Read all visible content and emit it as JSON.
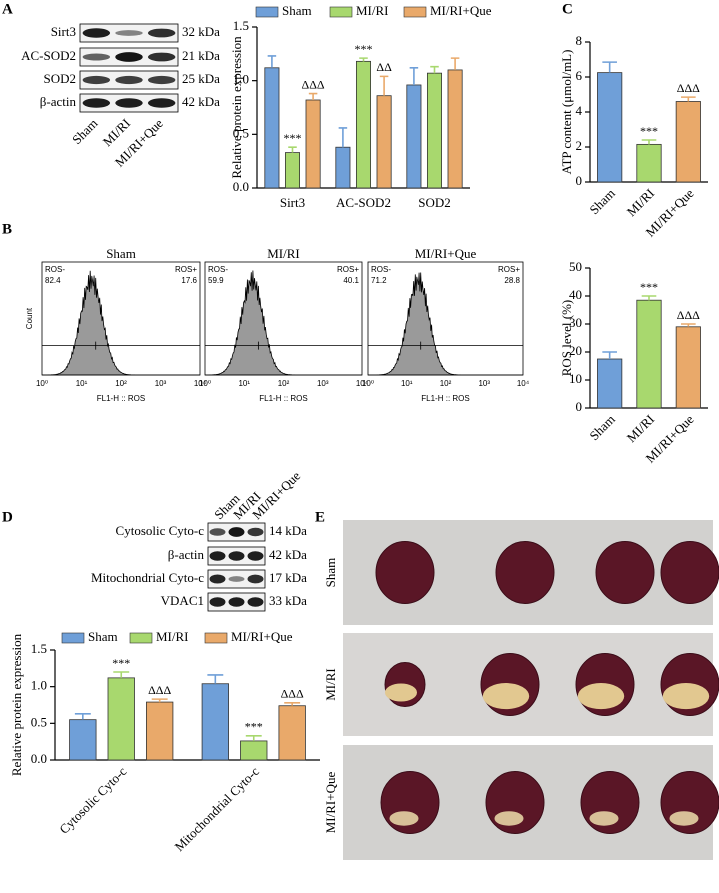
{
  "panel_labels": [
    "A",
    "B",
    "C",
    "D",
    "E"
  ],
  "blot_A": {
    "lanes": [
      "Sham",
      "MI/RI",
      "MI/RI+Que"
    ],
    "rows": [
      {
        "protein": "Sirt3",
        "size": "32 kDa"
      },
      {
        "protein": "AC-SOD2",
        "size": "21 kDa"
      },
      {
        "protein": "SOD2",
        "size": "25 kDa"
      },
      {
        "protein": "β-actin",
        "size": "42 kDa"
      }
    ]
  },
  "blot_D": {
    "lanes": [
      "Sham",
      "MI/RI",
      "MI/RI+Que"
    ],
    "rows": [
      {
        "protein": "Cytosolic Cyto-c",
        "size": "14 kDa"
      },
      {
        "protein": "β-actin",
        "size": "42 kDa"
      },
      {
        "protein": "Mitochondrial Cyto-c",
        "size": "17 kDa"
      },
      {
        "protein": "VDAC1",
        "size": "33 kDa"
      }
    ]
  },
  "flow": {
    "y_label": "Count",
    "x_label": "FL1-H :: ROS",
    "x_ticks": [
      "10⁰",
      "10¹",
      "10²",
      "10³",
      "10⁴"
    ],
    "plots": [
      {
        "title": "Sham",
        "neg_label": "ROS-",
        "neg": 82.4,
        "pos_label": "ROS+",
        "pos": 17.6
      },
      {
        "title": "MI/RI",
        "neg_label": "ROS-",
        "neg": 59.9,
        "pos_label": "ROS+",
        "pos": 40.1
      },
      {
        "title": "MI/RI+Que",
        "neg_label": "ROS-",
        "neg": 71.2,
        "pos_label": "ROS+",
        "pos": 28.8
      }
    ]
  },
  "photos": {
    "rows": [
      "Sham",
      "MI/RI",
      "MI/RI+Que"
    ]
  },
  "chart_data": [
    {
      "type": "bar",
      "y_label": "Relative protein expression",
      "categories": [
        "Sirt3",
        "AC-SOD2",
        "SOD2"
      ],
      "series": [
        {
          "name": "Sham",
          "color": "#6f9fd8",
          "values": [
            1.12,
            0.38,
            0.96
          ],
          "errors": [
            0.11,
            0.18,
            0.16
          ],
          "annotations": [
            null,
            null,
            null
          ]
        },
        {
          "name": "MI/RI",
          "color": "#a8d86e",
          "values": [
            0.33,
            1.18,
            1.07
          ],
          "errors": [
            0.05,
            0.03,
            0.06
          ],
          "annotations": [
            "***",
            "***",
            null
          ]
        },
        {
          "name": "MI/RI+Que",
          "color": "#e9a96a",
          "values": [
            0.82,
            0.86,
            1.1
          ],
          "errors": [
            0.06,
            0.18,
            0.11
          ],
          "annotations": [
            "ΔΔΔ",
            "ΔΔ",
            null
          ]
        }
      ],
      "ylim": [
        0,
        1.5
      ],
      "yticks": [
        {
          "value": 0,
          "label": "0.0"
        },
        0.5,
        {
          "value": 1,
          "label": "1.0"
        },
        1.5
      ]
    },
    {
      "type": "bar",
      "y_label": "ATP content (μmol/mL)",
      "categories": [
        "Sham",
        "MI/RI",
        "MI/RI+Que"
      ],
      "values": [
        6.25,
        2.15,
        4.6
      ],
      "errors": [
        0.6,
        0.25,
        0.25
      ],
      "annotations": [
        null,
        "***",
        "ΔΔΔ"
      ],
      "colors": [
        "#6f9fd8",
        "#a8d86e",
        "#e9a96a"
      ],
      "ylim": [
        0,
        8
      ],
      "yticks": [
        0,
        2,
        4,
        6,
        8
      ]
    },
    {
      "type": "bar",
      "y_label": "ROS level (%)",
      "categories": [
        "Sham",
        "MI/RI",
        "MI/RI+Que"
      ],
      "values": [
        17.5,
        38.5,
        29
      ],
      "errors": [
        2.5,
        1.5,
        1
      ],
      "annotations": [
        null,
        "***",
        "ΔΔΔ"
      ],
      "colors": [
        "#6f9fd8",
        "#a8d86e",
        "#e9a96a"
      ],
      "ylim": [
        0,
        50
      ],
      "yticks": [
        0,
        10,
        20,
        30,
        40,
        50
      ]
    },
    {
      "type": "bar",
      "y_label": "Relative protein expression",
      "categories": [
        "Cytosolic Cyto-c",
        "Mitochondrial Cyto-c"
      ],
      "series": [
        {
          "name": "Sham",
          "color": "#6f9fd8",
          "values": [
            0.55,
            1.04
          ],
          "errors": [
            0.08,
            0.12
          ],
          "annotations": [
            null,
            null
          ]
        },
        {
          "name": "MI/RI",
          "color": "#a8d86e",
          "values": [
            1.12,
            0.26
          ],
          "errors": [
            0.08,
            0.07
          ],
          "annotations": [
            "***",
            "***"
          ]
        },
        {
          "name": "MI/RI+Que",
          "color": "#e9a96a",
          "values": [
            0.79,
            0.74
          ],
          "errors": [
            0.04,
            0.04
          ],
          "annotations": [
            "ΔΔΔ",
            "ΔΔΔ"
          ]
        }
      ],
      "ylim": [
        0,
        1.5
      ],
      "yticks": [
        {
          "value": 0,
          "label": "0.0"
        },
        0.5,
        {
          "value": 1,
          "label": "1.0"
        },
        1.5
      ]
    }
  ]
}
